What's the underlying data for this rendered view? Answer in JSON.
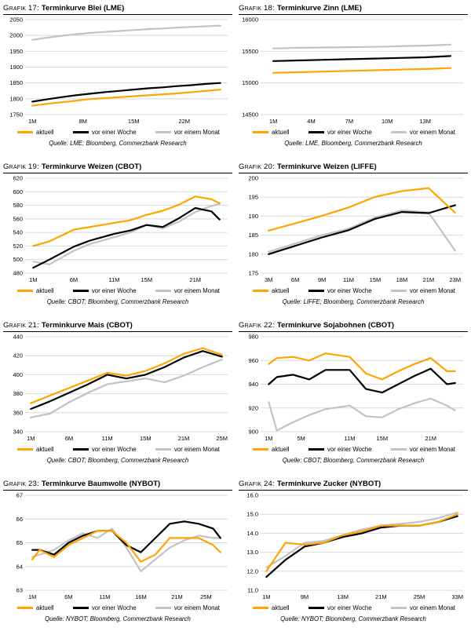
{
  "colors": {
    "aktuell": "#FFA400",
    "week": "#000000",
    "month": "#C3C3C3",
    "grid": "#D8D8D8"
  },
  "legend": {
    "aktuell": "aktuell",
    "week": "vor einer Woche",
    "month": "vor einem Monat"
  },
  "chart_data": [
    {
      "type": "line",
      "title_prefix": "Grafik 17:",
      "title": "Terminkurve Blei (LME)",
      "source": "Quelle: LME; Bloomberg, Commerzbank Research",
      "ylim": [
        1750,
        2050
      ],
      "xlim": [
        0,
        28
      ],
      "ytick_values": [
        1750,
        1800,
        1850,
        1900,
        1950,
        2000,
        2050
      ],
      "ytick_labels": [
        "1750",
        "1800",
        "1850",
        "1900",
        "1950",
        "2000",
        "2050"
      ],
      "xtick_values": [
        1,
        8,
        15,
        22
      ],
      "xtick_labels": [
        "1M",
        "8M",
        "15M",
        "22M"
      ],
      "x": [
        1,
        3,
        5,
        7,
        9,
        11,
        13,
        15,
        17,
        19,
        21,
        23,
        25,
        27
      ],
      "series": [
        {
          "key": "aktuell",
          "name": "aktuell",
          "values": [
            1778,
            1784,
            1789,
            1794,
            1799,
            1802,
            1805,
            1808,
            1811,
            1814,
            1817,
            1821,
            1825,
            1829
          ]
        },
        {
          "key": "week",
          "name": "vor einer Woche",
          "values": [
            1791,
            1798,
            1805,
            1811,
            1816,
            1821,
            1825,
            1829,
            1833,
            1836,
            1840,
            1843,
            1847,
            1850
          ]
        },
        {
          "key": "month",
          "name": "vor einem Monat",
          "values": [
            1986,
            1993,
            1999,
            2004,
            2008,
            2011,
            2014,
            2017,
            2020,
            2022,
            2025,
            2027,
            2029,
            2031
          ]
        }
      ]
    },
    {
      "type": "line",
      "title_prefix": "Grafik 18:",
      "title": "Terminkurve Zinn (LME)",
      "source": "Quelle: LME, Bloomberg, Commerzbank Research",
      "ylim": [
        14500,
        16000
      ],
      "xlim": [
        0,
        16
      ],
      "ytick_values": [
        14500,
        15000,
        15500,
        16000
      ],
      "ytick_labels": [
        "14500",
        "15000",
        "15500",
        "16000"
      ],
      "xtick_values": [
        1,
        4,
        7,
        10,
        13
      ],
      "xtick_labels": [
        "1M",
        "4M",
        "7M",
        "10M",
        "13M"
      ],
      "x": [
        1,
        3,
        5,
        7,
        9,
        11,
        13,
        15
      ],
      "series": [
        {
          "key": "aktuell",
          "name": "aktuell",
          "values": [
            15160,
            15170,
            15180,
            15190,
            15200,
            15210,
            15220,
            15235
          ]
        },
        {
          "key": "week",
          "name": "vor einer Woche",
          "values": [
            15345,
            15355,
            15365,
            15375,
            15385,
            15395,
            15405,
            15425
          ]
        },
        {
          "key": "month",
          "name": "vor einem Monat",
          "values": [
            15545,
            15555,
            15560,
            15565,
            15570,
            15580,
            15590,
            15605
          ]
        }
      ]
    },
    {
      "type": "line",
      "title_prefix": "Grafik 19:",
      "title": "Terminkurve Weizen (CBOT)",
      "source": "Quelle: CBOT; Bloomberg, Commerzbank Research",
      "ylim": [
        480,
        620
      ],
      "xlim": [
        0,
        25
      ],
      "ytick_values": [
        480,
        500,
        520,
        540,
        560,
        580,
        600,
        620
      ],
      "ytick_labels": [
        "480",
        "500",
        "520",
        "540",
        "560",
        "580",
        "600",
        "620"
      ],
      "xtick_values": [
        1,
        6,
        11,
        15,
        21
      ],
      "xtick_labels": [
        "1M",
        "6M",
        "11M",
        "15M",
        "21M"
      ],
      "x": [
        1,
        3,
        6,
        8,
        11,
        13,
        15,
        17,
        19,
        21,
        23,
        24
      ],
      "series": [
        {
          "key": "aktuell",
          "name": "aktuell",
          "values": [
            520,
            527,
            544,
            548,
            554,
            558,
            566,
            572,
            581,
            593,
            589,
            583
          ]
        },
        {
          "key": "week",
          "name": "vor einer Woche",
          "values": [
            488,
            500,
            519,
            528,
            538,
            543,
            551,
            548,
            561,
            576,
            571,
            559
          ]
        },
        {
          "key": "month",
          "name": "vor einem Monat",
          "values": [
            497,
            493,
            513,
            523,
            533,
            540,
            551,
            546,
            556,
            570,
            579,
            582
          ]
        }
      ]
    },
    {
      "type": "line",
      "title_prefix": "Grafik 20:",
      "title": "Terminkurve Weizen (LIFFE)",
      "source": "Quelle: LIFFE; Bloomberg, Commerzbank Research",
      "ylim": [
        175,
        200
      ],
      "xlim": [
        -0.3,
        7.3
      ],
      "ytick_values": [
        175,
        180,
        185,
        190,
        195,
        200
      ],
      "ytick_labels": [
        "175",
        "180",
        "185",
        "190",
        "195",
        "200"
      ],
      "xtick_values": [
        0,
        1,
        2,
        3,
        4,
        5,
        6,
        7
      ],
      "xtick_labels": [
        "3M",
        "6M",
        "9M",
        "11M",
        "15M",
        "18M",
        "21M",
        "23M"
      ],
      "x": [
        0,
        1,
        2,
        3,
        4,
        5,
        6,
        7
      ],
      "series": [
        {
          "key": "aktuell",
          "name": "aktuell",
          "values": [
            186.2,
            188.1,
            190.1,
            192.3,
            195.1,
            196.6,
            197.4,
            190.9
          ]
        },
        {
          "key": "week",
          "name": "vor einer Woche",
          "values": [
            180.0,
            182.2,
            184.4,
            186.3,
            189.3,
            191.1,
            190.8,
            192.9
          ]
        },
        {
          "key": "month",
          "name": "vor einem Monat",
          "values": [
            180.6,
            182.8,
            185.0,
            186.7,
            189.7,
            191.5,
            191.0,
            180.9
          ]
        }
      ]
    },
    {
      "type": "line",
      "title_prefix": "Grafik 21:",
      "title": "Terminkurve Mais (CBOT)",
      "source": "Quelle: CBOT; Bloomberg, Commerzbank Research",
      "ylim": [
        340,
        440
      ],
      "xlim": [
        -0.3,
        10.3
      ],
      "ytick_values": [
        340,
        360,
        380,
        400,
        420,
        440
      ],
      "ytick_labels": [
        "340",
        "360",
        "380",
        "400",
        "420",
        "440"
      ],
      "xtick_values": [
        0,
        2,
        4,
        6,
        8,
        10
      ],
      "xtick_labels": [
        "1M",
        "6M",
        "11M",
        "15M",
        "21M",
        "25M"
      ],
      "x": [
        0,
        1,
        2,
        3,
        4,
        5,
        6,
        7,
        8,
        9,
        10
      ],
      "series": [
        {
          "key": "aktuell",
          "name": "aktuell",
          "values": [
            370,
            378,
            386,
            394,
            402,
            399,
            404,
            412,
            422,
            428,
            421
          ]
        },
        {
          "key": "week",
          "name": "vor einer Woche",
          "values": [
            364,
            372,
            381,
            390,
            400,
            396,
            400,
            408,
            418,
            425,
            419
          ]
        },
        {
          "key": "month",
          "name": "vor einem Monat",
          "values": [
            355,
            359,
            371,
            381,
            390,
            393,
            396,
            392,
            399,
            408,
            416
          ]
        }
      ]
    },
    {
      "type": "line",
      "title_prefix": "Grafik 22:",
      "title": "Terminkurve Sojabohnen (CBOT)",
      "source": "Quelle: CBOT; Bloomberg, Commerzbank Research",
      "ylim": [
        900,
        980
      ],
      "xlim": [
        0,
        25
      ],
      "ytick_values": [
        900,
        920,
        940,
        960,
        980
      ],
      "ytick_labels": [
        "900",
        "920",
        "940",
        "960",
        "980"
      ],
      "xtick_values": [
        1,
        5,
        11,
        15,
        21
      ],
      "xtick_labels": [
        "1M",
        "5M",
        "11M",
        "15M",
        "21M"
      ],
      "x": [
        1,
        2,
        4,
        6,
        8,
        11,
        13,
        15,
        17,
        19,
        21,
        23,
        24
      ],
      "series": [
        {
          "key": "aktuell",
          "name": "aktuell",
          "values": [
            957,
            962,
            963,
            960,
            966,
            963,
            949,
            944,
            951,
            957,
            962,
            951,
            951
          ]
        },
        {
          "key": "week",
          "name": "vor einer Woche",
          "values": [
            940,
            946,
            948,
            944,
            952,
            952,
            936,
            933,
            940,
            947,
            953,
            940,
            941
          ]
        },
        {
          "key": "month",
          "name": "vor einem Monat",
          "values": [
            925,
            901,
            908,
            914,
            919,
            922,
            913,
            912,
            919,
            924,
            928,
            922,
            918
          ]
        }
      ]
    },
    {
      "type": "line",
      "title_prefix": "Grafik 23:",
      "title": "Terminkurve Baumwolle (NYBOT)",
      "source": "Quelle: NYBOT; Bloomberg, Commerzbank Research",
      "ylim": [
        63,
        67
      ],
      "xlim": [
        0,
        28
      ],
      "ytick_values": [
        63,
        64,
        65,
        66,
        67
      ],
      "ytick_labels": [
        "63",
        "64",
        "65",
        "66",
        "67"
      ],
      "xtick_values": [
        1,
        6,
        11,
        16,
        21,
        25
      ],
      "xtick_labels": [
        "1M",
        "6M",
        "11M",
        "16M",
        "21M",
        "25M"
      ],
      "x": [
        1,
        2,
        4,
        6,
        8,
        10,
        12,
        14,
        16,
        18,
        20,
        22,
        24,
        26,
        27
      ],
      "series": [
        {
          "key": "aktuell",
          "name": "aktuell",
          "values": [
            64.3,
            64.7,
            64.4,
            64.9,
            65.2,
            65.5,
            65.5,
            65.0,
            64.2,
            64.5,
            65.2,
            65.2,
            65.2,
            64.9,
            64.6
          ]
        },
        {
          "key": "week",
          "name": "vor einer Woche",
          "values": [
            64.7,
            64.7,
            64.5,
            65.0,
            65.3,
            65.5,
            65.5,
            64.9,
            64.6,
            65.2,
            65.8,
            65.9,
            65.8,
            65.6,
            65.2
          ]
        },
        {
          "key": "month",
          "name": "vor einem Monat",
          "values": [
            64.4,
            64.5,
            64.7,
            65.1,
            65.4,
            65.2,
            65.6,
            64.8,
            63.8,
            64.3,
            64.8,
            65.1,
            65.3,
            65.2,
            65.2
          ]
        }
      ]
    },
    {
      "type": "line",
      "title_prefix": "Grafik 24:",
      "title": "Terminkurve Zucker (NYBOT)",
      "source": "Quelle: NYBOT; Bloomberg, Commerzbank Research",
      "ylim": [
        11,
        16
      ],
      "xlim": [
        -0.3,
        10.3
      ],
      "ytick_values": [
        11,
        12,
        13,
        14,
        15,
        16
      ],
      "ytick_labels": [
        "11.0",
        "12.0",
        "13.0",
        "14.0",
        "15.0",
        "16.0"
      ],
      "xtick_values": [
        0,
        2,
        4,
        6,
        8,
        10
      ],
      "xtick_labels": [
        "1M",
        "9M",
        "13M",
        "21M",
        "25M",
        "33M"
      ],
      "x": [
        0,
        1,
        2,
        3,
        4,
        5,
        6,
        7,
        8,
        9,
        10
      ],
      "series": [
        {
          "key": "aktuell",
          "name": "aktuell",
          "values": [
            12.0,
            13.5,
            13.4,
            13.5,
            13.9,
            14.1,
            14.4,
            14.4,
            14.4,
            14.6,
            15.0
          ]
        },
        {
          "key": "week",
          "name": "vor einer Woche",
          "values": [
            11.7,
            12.6,
            13.3,
            13.5,
            13.8,
            14.0,
            14.3,
            14.4,
            14.4,
            14.6,
            14.9
          ]
        },
        {
          "key": "month",
          "name": "vor einem Monat",
          "values": [
            12.2,
            12.8,
            13.5,
            13.6,
            13.9,
            14.2,
            14.4,
            14.5,
            14.6,
            14.8,
            15.1
          ]
        }
      ]
    }
  ]
}
